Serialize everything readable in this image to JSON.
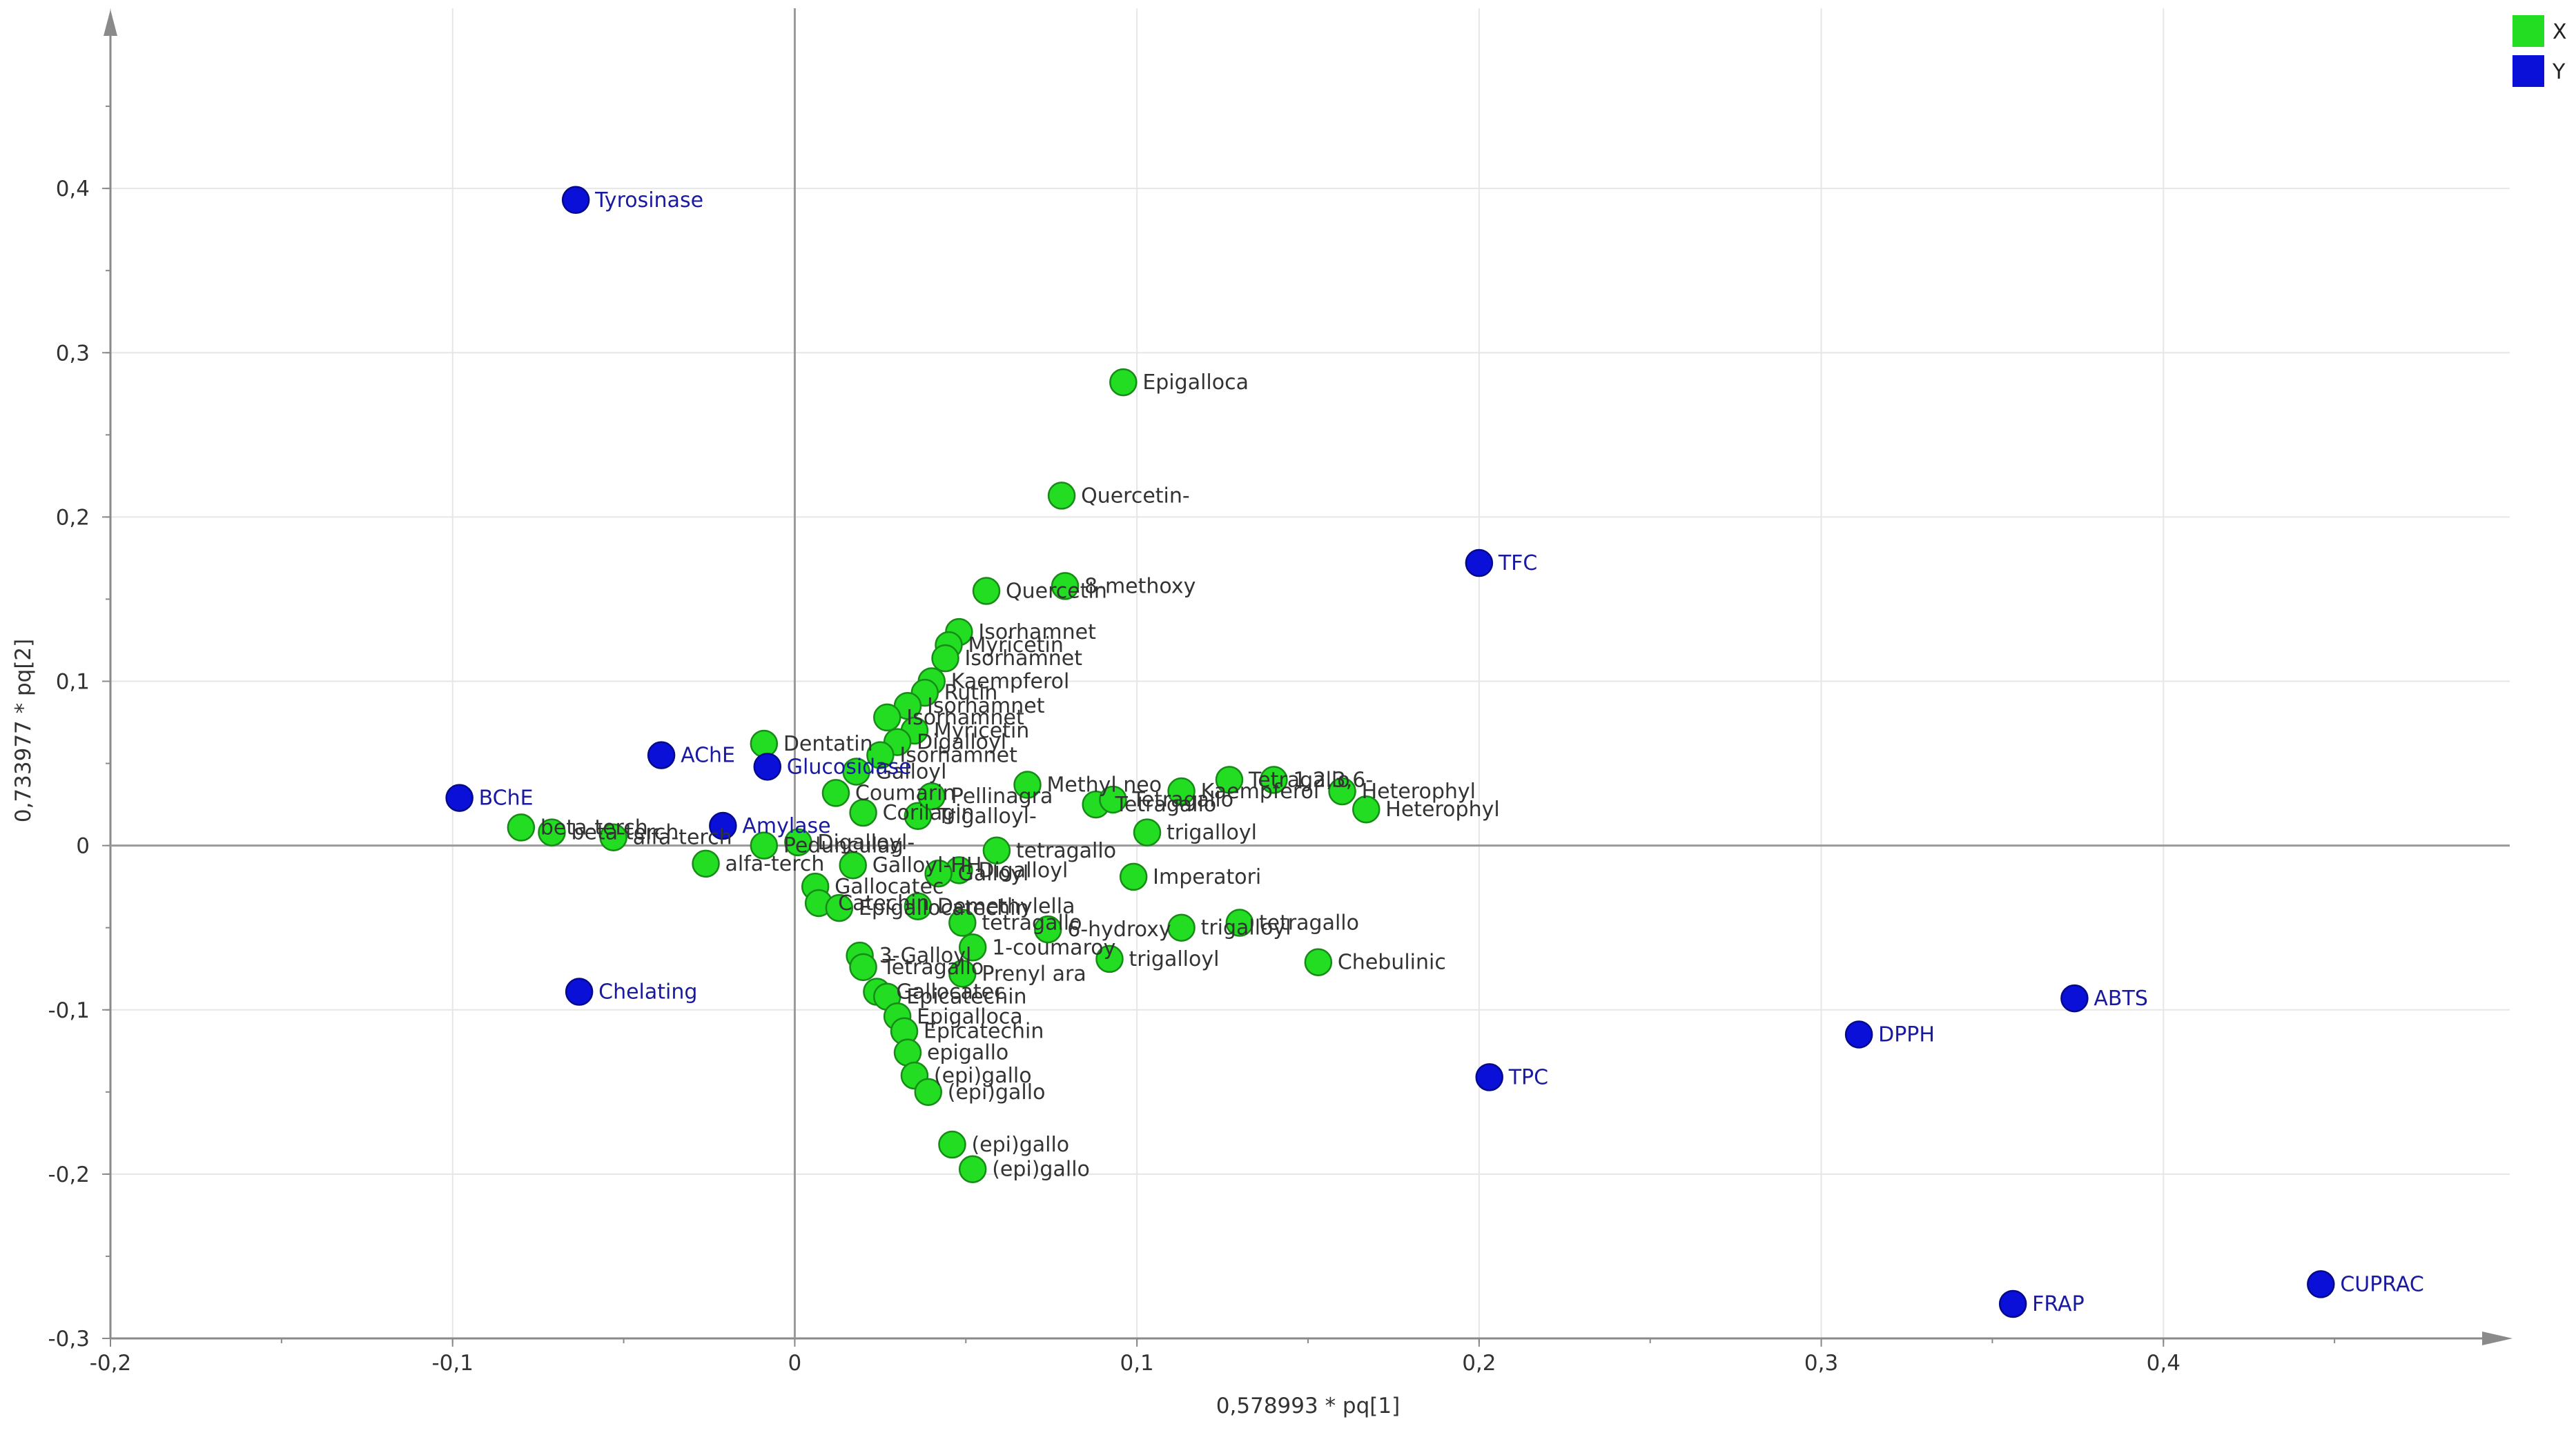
{
  "chart_data": {
    "type": "scatter",
    "xlabel": "0,578993 * pq[1]",
    "ylabel": "0,733977 * pq[2]",
    "xlim": [
      -0.2,
      0.5
    ],
    "ylim": [
      -0.3,
      0.5
    ],
    "xticks": [
      -0.2,
      -0.1,
      0,
      0.1,
      0.2,
      0.3,
      0.4
    ],
    "xtick_labels": [
      "-0,2",
      "-0,1",
      "0",
      "0,1",
      "0,2",
      "0,3",
      "0,4"
    ],
    "yticks": [
      -0.3,
      -0.2,
      -0.1,
      0,
      0.1,
      0.2,
      0.3,
      0.4
    ],
    "ytick_labels": [
      "-0,3",
      "-0,2",
      "-0,1",
      "0",
      "0,1",
      "0,2",
      "0,3",
      "0,4"
    ],
    "grid": true,
    "legend_position": "top-right",
    "series": [
      {
        "name": "X",
        "color": "#22dd22",
        "points": [
          {
            "label": "Epigalloca",
            "x": 0.096,
            "y": 0.282
          },
          {
            "label": "Quercetin-",
            "x": 0.078,
            "y": 0.213
          },
          {
            "label": "Quercetin",
            "x": 0.056,
            "y": 0.155
          },
          {
            "label": "8-methoxy",
            "x": 0.079,
            "y": 0.158
          },
          {
            "label": "Isorhamnet",
            "x": 0.048,
            "y": 0.13
          },
          {
            "label": "Myricetin",
            "x": 0.045,
            "y": 0.122
          },
          {
            "label": "Isorhamnet",
            "x": 0.044,
            "y": 0.114
          },
          {
            "label": "Kaempferol",
            "x": 0.04,
            "y": 0.1
          },
          {
            "label": "Rutin",
            "x": 0.038,
            "y": 0.093
          },
          {
            "label": "Isorhamnet",
            "x": 0.033,
            "y": 0.085
          },
          {
            "label": "Isorhamnet",
            "x": 0.027,
            "y": 0.078
          },
          {
            "label": "Myricetin",
            "x": 0.035,
            "y": 0.07
          },
          {
            "label": "Digalloyl",
            "x": 0.03,
            "y": 0.063
          },
          {
            "label": "Isorhamnet",
            "x": 0.025,
            "y": 0.055
          },
          {
            "label": "Galloyl",
            "x": 0.018,
            "y": 0.045
          },
          {
            "label": "Coumarin",
            "x": 0.012,
            "y": 0.032
          },
          {
            "label": "Corilagin",
            "x": 0.02,
            "y": 0.02
          },
          {
            "label": "Trigalloyl-",
            "x": 0.036,
            "y": 0.018
          },
          {
            "label": "Dentatin",
            "x": -0.009,
            "y": 0.062
          },
          {
            "label": "Methyl neo",
            "x": 0.068,
            "y": 0.037
          },
          {
            "label": "Pellinagra",
            "x": 0.04,
            "y": 0.03
          },
          {
            "label": "Tetragallo",
            "x": 0.088,
            "y": 0.025
          },
          {
            "label": "Tetragallo",
            "x": 0.093,
            "y": 0.028
          },
          {
            "label": "Kaempferol",
            "x": 0.113,
            "y": 0.033
          },
          {
            "label": "Tetragallo",
            "x": 0.127,
            "y": 0.04
          },
          {
            "label": "Heterophyl",
            "x": 0.16,
            "y": 0.033
          },
          {
            "label": "1,2,3,6-",
            "x": 0.14,
            "y": 0.04
          },
          {
            "label": "Heterophyl",
            "x": 0.167,
            "y": 0.022
          },
          {
            "label": "trigalloyl",
            "x": 0.103,
            "y": 0.008
          },
          {
            "label": "tetragallo",
            "x": 0.059,
            "y": -0.003
          },
          {
            "label": "Digalloyl",
            "x": 0.048,
            "y": -0.015
          },
          {
            "label": "Galloyl",
            "x": 0.042,
            "y": -0.017
          },
          {
            "label": "Imperatori",
            "x": 0.099,
            "y": -0.019
          },
          {
            "label": "beta-terch",
            "x": -0.08,
            "y": 0.011
          },
          {
            "label": "beta-terch",
            "x": -0.071,
            "y": 0.008
          },
          {
            "label": "alfa-terch",
            "x": -0.053,
            "y": 0.005
          },
          {
            "label": "alfa-terch",
            "x": -0.026,
            "y": -0.011
          },
          {
            "label": "Pedunculag",
            "x": -0.009,
            "y": 0.0
          },
          {
            "label": "Digalloyl-",
            "x": 0.001,
            "y": 0.002
          },
          {
            "label": "Galloyl-HH",
            "x": 0.017,
            "y": -0.012
          },
          {
            "label": "Gallocatec",
            "x": 0.006,
            "y": -0.025
          },
          {
            "label": "Catechin",
            "x": 0.007,
            "y": -0.035
          },
          {
            "label": "Epigallocatechin",
            "x": 0.013,
            "y": -0.038
          },
          {
            "label": "Demethylella",
            "x": 0.036,
            "y": -0.037
          },
          {
            "label": "tetragallo",
            "x": 0.049,
            "y": -0.047
          },
          {
            "label": "6-hydroxy",
            "x": 0.074,
            "y": -0.051
          },
          {
            "label": "trigalloyl",
            "x": 0.113,
            "y": -0.05
          },
          {
            "label": "tetragallo",
            "x": 0.13,
            "y": -0.047
          },
          {
            "label": "1-coumaroy",
            "x": 0.052,
            "y": -0.062
          },
          {
            "label": "Prenyl ara",
            "x": 0.049,
            "y": -0.078
          },
          {
            "label": "trigalloyl",
            "x": 0.092,
            "y": -0.069
          },
          {
            "label": "Chebulinic",
            "x": 0.153,
            "y": -0.071
          },
          {
            "label": "3-Galloyl",
            "x": 0.019,
            "y": -0.067
          },
          {
            "label": "Tetragallo",
            "x": 0.02,
            "y": -0.074
          },
          {
            "label": "Gallocatec",
            "x": 0.024,
            "y": -0.089
          },
          {
            "label": "Epicatechin",
            "x": 0.027,
            "y": -0.092
          },
          {
            "label": "Epigalloca",
            "x": 0.03,
            "y": -0.104
          },
          {
            "label": "Epicatechin",
            "x": 0.032,
            "y": -0.113
          },
          {
            "label": "epigallo",
            "x": 0.033,
            "y": -0.126
          },
          {
            "label": "(epi)gallo",
            "x": 0.035,
            "y": -0.14
          },
          {
            "label": "(epi)gallo",
            "x": 0.039,
            "y": -0.15
          },
          {
            "label": "(epi)gallo",
            "x": 0.046,
            "y": -0.182
          },
          {
            "label": "(epi)gallo",
            "x": 0.052,
            "y": -0.197
          }
        ]
      },
      {
        "name": "Y",
        "color": "#0a10d8",
        "points": [
          {
            "label": "Tyrosinase",
            "x": -0.064,
            "y": 0.393
          },
          {
            "label": "TFC",
            "x": 0.2,
            "y": 0.172
          },
          {
            "label": "AChE",
            "x": -0.039,
            "y": 0.055
          },
          {
            "label": "Glucosidase",
            "x": -0.008,
            "y": 0.048
          },
          {
            "label": "BChE",
            "x": -0.098,
            "y": 0.029
          },
          {
            "label": "Amylase",
            "x": -0.021,
            "y": 0.012
          },
          {
            "label": "Chelating",
            "x": -0.063,
            "y": -0.089
          },
          {
            "label": "TPC",
            "x": 0.203,
            "y": -0.141
          },
          {
            "label": "DPPH",
            "x": 0.311,
            "y": -0.115
          },
          {
            "label": "ABTS",
            "x": 0.374,
            "y": -0.093
          },
          {
            "label": "FRAP",
            "x": 0.356,
            "y": -0.279
          },
          {
            "label": "CUPRAC",
            "x": 0.446,
            "y": -0.267
          }
        ]
      }
    ]
  }
}
